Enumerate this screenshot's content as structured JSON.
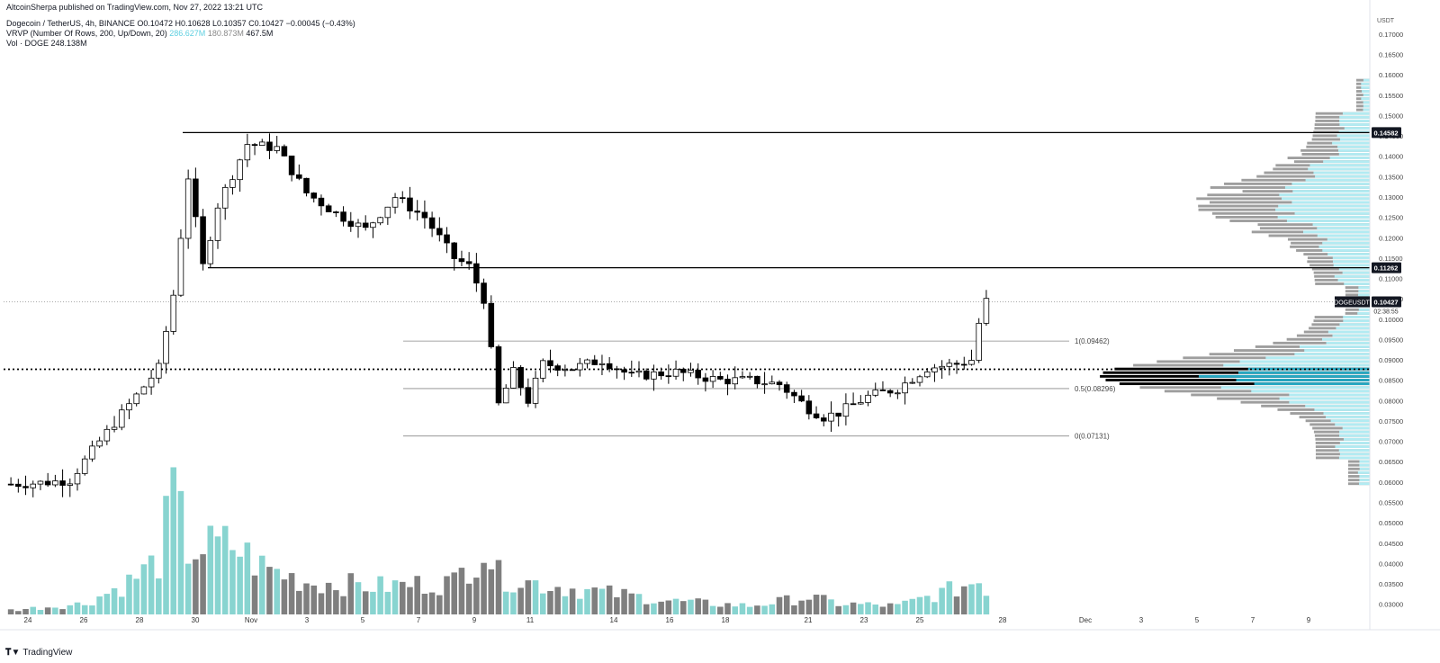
{
  "publish_line": "AltcoinSherpa published on TradingView.com, Nov 27, 2022 13:21 UTC",
  "symbol_row": {
    "name": "Dogecoin / TetherUS, 4h, BINANCE",
    "open": "O0.10472",
    "high": "H0.10628",
    "low": "L0.10357",
    "close": "C0.10427",
    "change": "−0.00045 (−0.43%)"
  },
  "vrvp_row": {
    "label": "VRVP (Number Of Rows, 200, Up/Down, 20)",
    "up": "286.627M",
    "down": "180.873M",
    "total": "467.5M"
  },
  "vol_row": {
    "label": "Vol · DOGE",
    "value": "248.138M"
  },
  "footer": {
    "logo_text": "TradingView"
  },
  "colors": {
    "up_volume": "#88d4d0",
    "down_volume": "#7f7f7f",
    "vp_up": "#b2ebf2",
    "vp_down": "#9e9e9e",
    "candle_up": "#ffffff",
    "candle_down": "#000000"
  },
  "chart_data": {
    "type": "candlestick",
    "symbol": "DOGEUSDT",
    "axis_currency": "USDT",
    "ylim": [
      0.0275,
      0.1755
    ],
    "y_ticks": [
      "0.17000",
      "0.16500",
      "0.16000",
      "0.15500",
      "0.15000",
      "0.14500",
      "0.14000",
      "0.13500",
      "0.13000",
      "0.12500",
      "0.12000",
      "0.11500",
      "0.11000",
      "0.10500",
      "0.10000",
      "0.09500",
      "0.09000",
      "0.08500",
      "0.08000",
      "0.07500",
      "0.07000",
      "0.06500",
      "0.06000",
      "0.05500",
      "0.05000",
      "0.04500",
      "0.04000",
      "0.03500",
      "0.03000"
    ],
    "x_ticks": [
      "24",
      "26",
      "28",
      "30",
      "Nov",
      "3",
      "5",
      "7",
      "9",
      "11",
      "14",
      "16",
      "18",
      "21",
      "23",
      "25",
      "28",
      "Dec",
      "3",
      "5",
      "7",
      "9"
    ],
    "price_labels": [
      {
        "value": 0.14582,
        "text": "0.14582"
      },
      {
        "value": 0.11262,
        "text": "0.11262"
      },
      {
        "value": 0.10427,
        "text": "0.10427",
        "name": "DOGEUSDT",
        "countdown": "02:38:55"
      }
    ],
    "horizontal_lines": [
      {
        "value": 0.14582,
        "style": "solid"
      },
      {
        "value": 0.11262,
        "style": "solid"
      },
      {
        "value": 0.0877,
        "style": "dotted"
      },
      {
        "value": 0.10427,
        "style": "thin-dotted"
      }
    ],
    "fib_levels": [
      {
        "value": 0.09462,
        "label": "1(0.09462)"
      },
      {
        "value": 0.08296,
        "label": "0.5(0.08296)"
      },
      {
        "value": 0.07131,
        "label": "0(0.07131)"
      }
    ],
    "price_key_points": [
      [
        0,
        0.0595
      ],
      [
        4,
        0.0598
      ],
      [
        8,
        0.0605
      ],
      [
        12,
        0.07
      ],
      [
        16,
        0.079
      ],
      [
        20,
        0.088
      ],
      [
        22,
        0.106
      ],
      [
        24,
        0.135
      ],
      [
        26,
        0.113
      ],
      [
        28,
        0.128
      ],
      [
        32,
        0.143
      ],
      [
        36,
        0.142
      ],
      [
        40,
        0.131
      ],
      [
        44,
        0.126
      ],
      [
        48,
        0.122
      ],
      [
        52,
        0.13
      ],
      [
        56,
        0.125
      ],
      [
        60,
        0.115
      ],
      [
        62,
        0.113
      ],
      [
        64,
        0.105
      ],
      [
        66,
        0.079
      ],
      [
        68,
        0.087
      ],
      [
        70,
        0.08
      ],
      [
        72,
        0.089
      ],
      [
        76,
        0.088
      ],
      [
        80,
        0.09
      ],
      [
        84,
        0.086
      ],
      [
        90,
        0.087
      ],
      [
        96,
        0.085
      ],
      [
        100,
        0.085
      ],
      [
        104,
        0.084
      ],
      [
        108,
        0.078
      ],
      [
        110,
        0.076
      ],
      [
        112,
        0.077
      ],
      [
        116,
        0.081
      ],
      [
        120,
        0.083
      ],
      [
        124,
        0.088
      ],
      [
        128,
        0.089
      ],
      [
        130,
        0.09
      ],
      [
        131,
        0.099
      ],
      [
        132,
        0.1044
      ]
    ],
    "volume_key_points": [
      [
        0,
        0.2
      ],
      [
        10,
        0.5
      ],
      [
        16,
        1.5
      ],
      [
        20,
        2.5
      ],
      [
        22,
        5.5
      ],
      [
        24,
        3.0
      ],
      [
        30,
        3.2
      ],
      [
        34,
        2.2
      ],
      [
        40,
        1.5
      ],
      [
        50,
        1.3
      ],
      [
        60,
        1.5
      ],
      [
        64,
        3.2
      ],
      [
        66,
        1.8
      ],
      [
        70,
        1.5
      ],
      [
        76,
        1.2
      ],
      [
        90,
        0.6
      ],
      [
        100,
        0.4
      ],
      [
        108,
        0.8
      ],
      [
        112,
        0.5
      ],
      [
        120,
        0.4
      ],
      [
        128,
        1.2
      ],
      [
        131,
        1.6
      ],
      [
        132,
        1.2
      ]
    ],
    "volume_profile": {
      "row_range": [
        0.059,
        0.159
      ],
      "rows": 200,
      "point_of_control": 0.0855
    }
  }
}
